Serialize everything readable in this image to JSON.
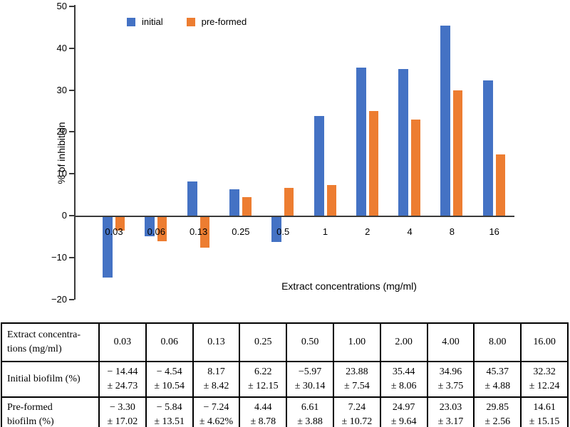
{
  "colors": {
    "initial": "#4472C4",
    "preformed": "#ED7D31",
    "axis": "#3a3a3a",
    "table_border": "#000000"
  },
  "chart_data": {
    "type": "bar",
    "title": "",
    "xlabel": "Extract concentrations (mg/ml)",
    "ylabel": "% of inhibition",
    "ylim": [
      -20,
      50
    ],
    "yticks": [
      50,
      40,
      30,
      20,
      10,
      0,
      -10,
      -20
    ],
    "grid": false,
    "legend_position": "top",
    "categories": [
      "0.03",
      "0.06",
      "0.13",
      "0.25",
      "0.5",
      "1",
      "2",
      "4",
      "8",
      "16"
    ],
    "series": [
      {
        "name": "initial",
        "color": "#4472C4",
        "values": [
          -14.44,
          -4.54,
          8.17,
          6.22,
          -5.97,
          23.88,
          35.44,
          34.96,
          45.37,
          32.32
        ]
      },
      {
        "name": "pre-formed",
        "color": "#ED7D31",
        "values": [
          -3.3,
          -5.84,
          -7.24,
          4.44,
          6.61,
          7.24,
          24.97,
          23.03,
          29.85,
          14.61
        ]
      }
    ]
  },
  "table": {
    "header": {
      "label_line1": "Extract concentra-",
      "label_line2": "tions (mg/ml)",
      "values": [
        "0.03",
        "0.06",
        "0.13",
        "0.25",
        "0.50",
        "1.00",
        "2.00",
        "4.00",
        "8.00",
        "16.00"
      ]
    },
    "rows": [
      {
        "label_line1": "Initial biofilm (%)",
        "label_line2": "",
        "cells": [
          {
            "value": "− 14.44",
            "error": "± 24.73"
          },
          {
            "value": "− 4.54",
            "error": "± 10.54"
          },
          {
            "value": "8.17",
            "error": "± 8.42"
          },
          {
            "value": "6.22",
            "error": "± 12.15"
          },
          {
            "value": "−5.97",
            "error": "± 30.14"
          },
          {
            "value": "23.88",
            "error": "± 7.54"
          },
          {
            "value": "35.44",
            "error": "± 8.06"
          },
          {
            "value": "34.96",
            "error": "± 3.75"
          },
          {
            "value": "45.37",
            "error": "± 4.88"
          },
          {
            "value": "32.32",
            "error": "± 12.24"
          }
        ]
      },
      {
        "label_line1": "Pre-formed",
        "label_line2": "biofilm (%)",
        "cells": [
          {
            "value": "− 3.30",
            "error": "± 17.02"
          },
          {
            "value": "− 5.84",
            "error": "± 13.51"
          },
          {
            "value": "− 7.24",
            "error": "± 4.62%"
          },
          {
            "value": "4.44",
            "error": "± 8.78"
          },
          {
            "value": "6.61",
            "error": "± 3.88"
          },
          {
            "value": "7.24",
            "error": "± 10.72"
          },
          {
            "value": "24.97",
            "error": "± 9.64"
          },
          {
            "value": "23.03",
            "error": "± 3.17"
          },
          {
            "value": "29.85",
            "error": "± 2.56"
          },
          {
            "value": "14.61",
            "error": "± 15.15"
          }
        ]
      }
    ]
  }
}
